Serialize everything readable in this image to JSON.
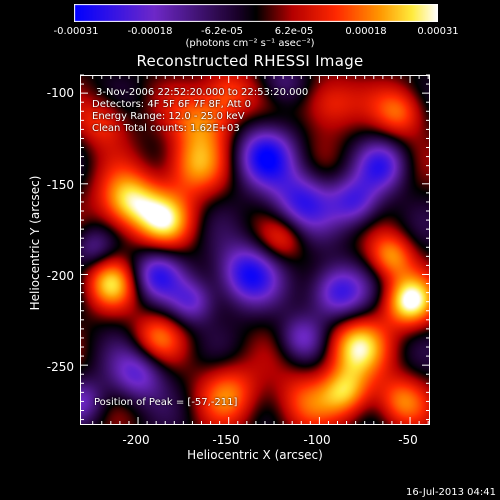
{
  "colorbar": {
    "ticks": [
      "-0.00031",
      "-0.00018",
      "-6.2e-05",
      "6.2e-05",
      "0.00018",
      "0.00031"
    ],
    "units": "(photons cm⁻² s⁻¹ asec⁻²)"
  },
  "chart_data": {
    "type": "heatmap",
    "title": "Reconstructed RHESSI Image",
    "xlabel": "Heliocentric X (arcsec)",
    "ylabel": "Heliocentric Y (arcsec)",
    "xlim": [
      -232,
      -39
    ],
    "ylim": [
      -283,
      -90
    ],
    "xticks": [
      "-200",
      "-150",
      "-100",
      "-50"
    ],
    "yticks": [
      "-100",
      "-150",
      "-200",
      "-250"
    ],
    "zlim": [
      -0.00031,
      0.00031
    ],
    "colormap": "blue-purple-black-red-orange-yellow-white",
    "blobs": [
      {
        "x": -205,
        "y": -160,
        "z": 0.00028,
        "s": 12
      },
      {
        "x": -185,
        "y": -170,
        "z": 0.00022,
        "s": 11
      },
      {
        "x": -170,
        "y": -140,
        "z": 0.0002,
        "s": 12
      },
      {
        "x": -165,
        "y": -115,
        "z": 0.00018,
        "s": 12
      },
      {
        "x": -150,
        "y": -100,
        "z": 0.00016,
        "s": 10
      },
      {
        "x": -220,
        "y": -115,
        "z": 0.00014,
        "s": 10
      },
      {
        "x": -215,
        "y": -205,
        "z": 0.00022,
        "s": 10
      },
      {
        "x": -190,
        "y": -235,
        "z": 0.00016,
        "s": 10
      },
      {
        "x": -150,
        "y": -265,
        "z": 0.00017,
        "s": 12
      },
      {
        "x": -110,
        "y": -270,
        "z": 0.00014,
        "s": 12
      },
      {
        "x": -80,
        "y": -240,
        "z": 0.00026,
        "s": 12
      },
      {
        "x": -85,
        "y": -265,
        "z": 0.00022,
        "s": 10
      },
      {
        "x": -55,
        "y": -270,
        "z": 0.00018,
        "s": 10
      },
      {
        "x": -50,
        "y": -215,
        "z": 0.0003,
        "s": 10
      },
      {
        "x": -60,
        "y": -190,
        "z": 0.0002,
        "s": 9
      },
      {
        "x": -95,
        "y": -105,
        "z": 0.00016,
        "s": 11
      },
      {
        "x": -55,
        "y": -110,
        "z": 0.00018,
        "s": 10
      },
      {
        "x": -120,
        "y": -180,
        "z": 0.00012,
        "s": 9
      },
      {
        "x": -130,
        "y": -135,
        "z": -0.00026,
        "s": 12
      },
      {
        "x": -110,
        "y": -160,
        "z": -0.00024,
        "s": 12
      },
      {
        "x": -140,
        "y": -200,
        "z": -0.00028,
        "s": 12
      },
      {
        "x": -90,
        "y": -210,
        "z": -0.00027,
        "s": 11
      },
      {
        "x": -80,
        "y": -160,
        "z": -0.00022,
        "s": 10
      },
      {
        "x": -190,
        "y": -200,
        "z": -0.00022,
        "s": 10
      },
      {
        "x": -200,
        "y": -255,
        "z": -0.0002,
        "s": 11
      },
      {
        "x": -170,
        "y": -215,
        "z": -0.00018,
        "s": 9
      },
      {
        "x": -65,
        "y": -140,
        "z": -0.0002,
        "s": 10
      },
      {
        "x": -110,
        "y": -235,
        "z": -0.00016,
        "s": 9
      },
      {
        "x": -225,
        "y": -185,
        "z": -0.00012,
        "s": 8
      },
      {
        "x": -230,
        "y": -270,
        "z": -0.00014,
        "s": 9
      },
      {
        "x": -120,
        "y": -95,
        "z": -0.00012,
        "s": 9
      }
    ]
  },
  "annotations": {
    "time": "3-Nov-2006 22:52:20.000 to 22:53:20.000",
    "detectors": "Detectors: 4F 5F 6F 7F 8F, Att 0",
    "energy": "Energy Range: 12.0 - 25.0 keV",
    "clean": "Clean     Total counts: 1.62E+03",
    "peak": "Position of Peak = [-57,-211]"
  },
  "footer": "16-Jul-2013 04:41"
}
